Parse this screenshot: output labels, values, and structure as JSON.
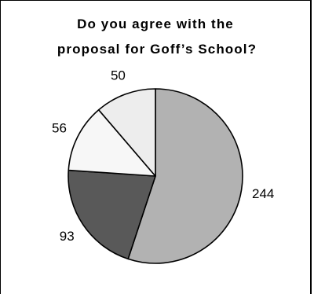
{
  "chart_data": {
    "type": "pie",
    "title": [
      "Do you agree with the",
      "proposal for Goff’s School?"
    ],
    "slices": [
      {
        "label": "244",
        "value": 244,
        "color": "#b2b2b2"
      },
      {
        "label": "93",
        "value": 93,
        "color": "#595959"
      },
      {
        "label": "56",
        "value": 56,
        "color": "#f7f7f7"
      },
      {
        "label": "50",
        "value": 50,
        "color": "#ededed"
      }
    ],
    "start_angle_deg": 0,
    "direction": "clockwise",
    "legend": "none",
    "data_labels": "outside"
  }
}
